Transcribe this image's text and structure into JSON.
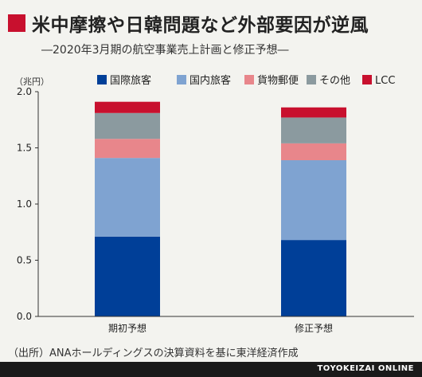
{
  "title": "米中摩擦や日韓問題など外部要因が逆風",
  "subtitle": "―2020年3月期の航空事業売上計画と修正予想―",
  "unit_label": "（兆円）",
  "source": "（出所）ANAホールディングスの決算資料を基に東洋経済作成",
  "brand": "TOYOKEIZAI ONLINE",
  "colors": {
    "title_mark": "#c8102e"
  },
  "chart_data": {
    "type": "bar",
    "stacked": true,
    "categories": [
      "期初予想",
      "修正予想"
    ],
    "series": [
      {
        "name": "国際旅客",
        "color": "#003f98",
        "values": [
          0.71,
          0.68
        ]
      },
      {
        "name": "国内旅客",
        "color": "#7fa3d1",
        "values": [
          0.7,
          0.71
        ]
      },
      {
        "name": "貨物郵便",
        "color": "#e8868b",
        "values": [
          0.17,
          0.15
        ]
      },
      {
        "name": "その他",
        "color": "#8b9a9f",
        "values": [
          0.23,
          0.23
        ]
      },
      {
        "name": "LCC",
        "color": "#c8102e",
        "values": [
          0.1,
          0.09
        ]
      }
    ],
    "ylim": [
      0,
      2.0
    ],
    "yticks": [
      "0.0",
      "0.5",
      "1.0",
      "1.5",
      "2.0"
    ],
    "legend_position": "top",
    "grid": false
  }
}
